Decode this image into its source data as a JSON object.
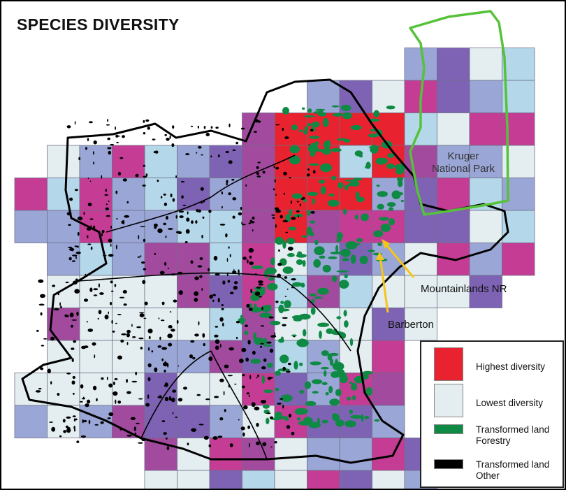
{
  "title": "SPECIES DIVERSITY",
  "park": {
    "line1": "Kruger",
    "line2": "National Park"
  },
  "places": {
    "mountainlands": "Mountainlands NR",
    "barberton": "Barberton"
  },
  "legend": {
    "items": [
      {
        "label1": "Highest diversity",
        "label2": "",
        "color": "#e8222e"
      },
      {
        "label1": "Lowest diversity",
        "label2": "",
        "color": "#e4eef0"
      },
      {
        "label1": "Transformed land",
        "label2": "Forestry",
        "color": "#0e8a45"
      },
      {
        "label1": "Transformed land",
        "label2": "Other",
        "color": "#000000"
      }
    ]
  },
  "colors": {
    "park_boundary": "#55c23a",
    "arrow": "#f5c518",
    "grid_palette": [
      "#e4eef0",
      "#b5d7ea",
      "#9aa6d6",
      "#7e63b4",
      "#a24a9e",
      "#c43c94",
      "#e8222e"
    ]
  }
}
